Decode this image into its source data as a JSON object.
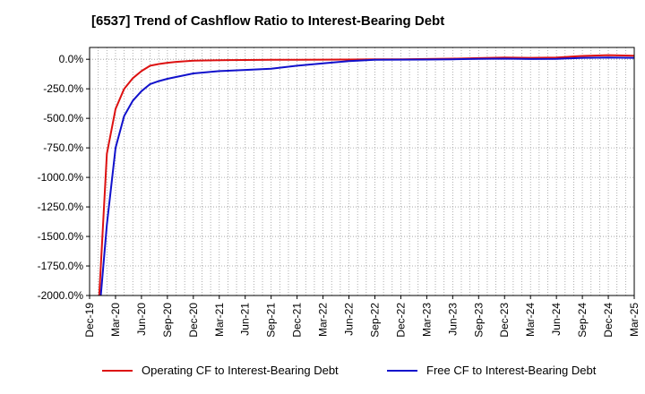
{
  "title": "[6537]  Trend of Cashflow Ratio to Interest-Bearing Debt",
  "legend": {
    "operating_label": "Operating CF to Interest-Bearing Debt",
    "free_label": "Free CF to Interest-Bearing Debt"
  },
  "chart_data": {
    "type": "line",
    "title": "[6537]  Trend of Cashflow Ratio to Interest-Bearing Debt",
    "xlabel": "",
    "ylabel": "",
    "ylim": [
      -2000,
      100
    ],
    "y_unit": "%",
    "y_ticks": [
      "0.0%",
      "-250.0%",
      "-500.0%",
      "-750.0%",
      "-1000.0%",
      "-1250.0%",
      "-1500.0%",
      "-1750.0%",
      "-2000.0%"
    ],
    "y_tick_values": [
      0,
      -250,
      -500,
      -750,
      -1000,
      -1250,
      -1500,
      -1750,
      -2000
    ],
    "x_ticks": [
      "Dec-19",
      "Mar-20",
      "Jun-20",
      "Sep-20",
      "Dec-20",
      "Mar-21",
      "Jun-21",
      "Sep-21",
      "Dec-21",
      "Mar-22",
      "Jun-22",
      "Sep-22",
      "Dec-22",
      "Mar-23",
      "Jun-23",
      "Sep-23",
      "Dec-23",
      "Mar-24",
      "Jun-24",
      "Sep-24",
      "Dec-24",
      "Mar-25"
    ],
    "x_range_months": [
      0,
      63
    ],
    "grid": true,
    "legend_position": "bottom",
    "series": [
      {
        "name": "Operating CF to Interest-Bearing Debt",
        "color": "#dd1111",
        "x_months": [
          1,
          2,
          3,
          4,
          5,
          6,
          7,
          8,
          9,
          10,
          12,
          15,
          18,
          21,
          24,
          27,
          30,
          33,
          36,
          39,
          42,
          45,
          48,
          51,
          54,
          57,
          60,
          63
        ],
        "values": [
          -2150,
          -800,
          -420,
          -250,
          -160,
          -100,
          -55,
          -40,
          -30,
          -22,
          -12,
          -8,
          -6,
          -5,
          -4,
          -3,
          -2,
          -1,
          0,
          2,
          5,
          10,
          15,
          12,
          15,
          28,
          35,
          30
        ]
      },
      {
        "name": "Free CF to Interest-Bearing Debt",
        "color": "#1111cc",
        "x_months": [
          1,
          2,
          3,
          4,
          5,
          6,
          7,
          8,
          9,
          10,
          12,
          15,
          18,
          21,
          24,
          27,
          30,
          33,
          36,
          39,
          42,
          45,
          48,
          51,
          54,
          57,
          60,
          63
        ],
        "values": [
          -2250,
          -1400,
          -750,
          -480,
          -350,
          -270,
          -210,
          -185,
          -165,
          -150,
          -120,
          -100,
          -90,
          -80,
          -55,
          -35,
          -15,
          -5,
          -3,
          -2,
          0,
          3,
          5,
          2,
          3,
          12,
          15,
          12
        ]
      }
    ]
  }
}
